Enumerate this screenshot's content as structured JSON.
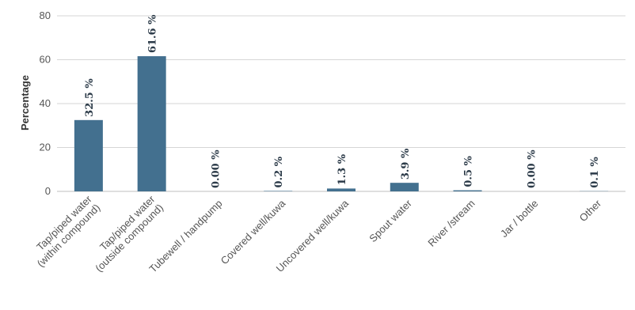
{
  "chart_data": {
    "type": "bar",
    "title": "",
    "xlabel": "",
    "ylabel": "Percentage",
    "ylim": [
      0,
      80
    ],
    "yticks": [
      0,
      20,
      40,
      60,
      80
    ],
    "grid": true,
    "legend": "none",
    "bar_color": "#43708f",
    "categories": [
      [
        "Tap/piped water",
        "(within compound)"
      ],
      [
        "Tap/piped water",
        "(outside compound)"
      ],
      [
        "Tubewell / handpump"
      ],
      [
        "Covered well/kuwa"
      ],
      [
        "Uncovered well/kuwa"
      ],
      [
        "Spout water"
      ],
      [
        "River /stream"
      ],
      [
        "Jar / bottle"
      ],
      [
        "Other"
      ]
    ],
    "values": [
      32.5,
      61.6,
      0.0,
      0.2,
      1.3,
      3.9,
      0.5,
      0.0,
      0.1
    ],
    "data_labels": [
      "32.5 %",
      "61.6 %",
      "0.00 %",
      "0.2 %",
      "1.3 %",
      "3.9 %",
      "0.5 %",
      "0.00 %",
      "0.1 %"
    ]
  }
}
